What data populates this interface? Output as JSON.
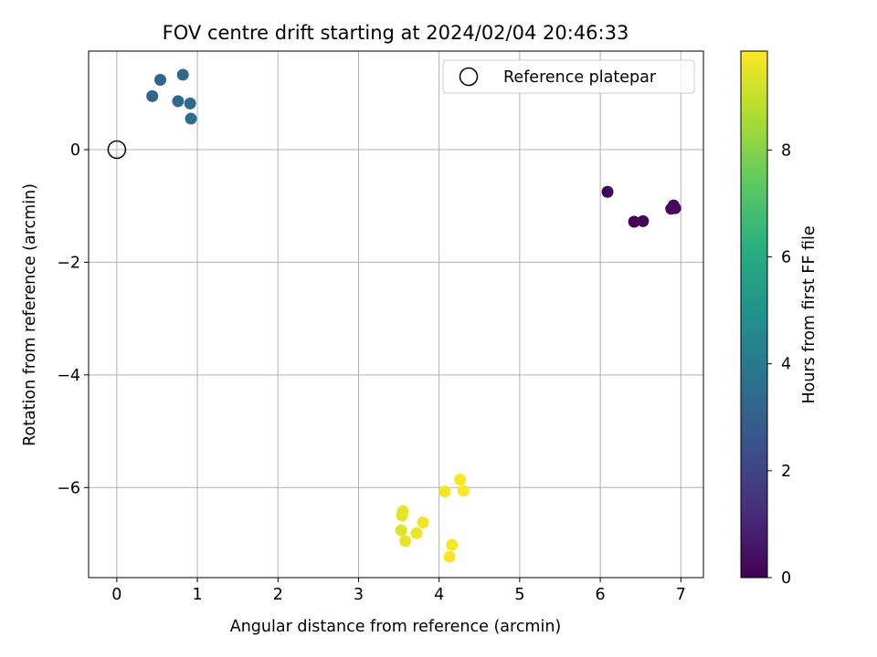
{
  "chart_data": {
    "type": "scatter",
    "title": "FOV centre drift starting at 2024/02/04 20:46:33",
    "xlabel": "Angular distance from reference (arcmin)",
    "ylabel": "Rotation from reference (arcmin)",
    "xlim": [
      -0.35,
      7.28
    ],
    "ylim": [
      -7.6,
      1.75
    ],
    "xticks": [
      0,
      1,
      2,
      3,
      4,
      5,
      6,
      7
    ],
    "yticks": [
      0,
      -2,
      -4,
      -6
    ],
    "grid": true,
    "legend": {
      "position": "top-right",
      "entries": [
        "Reference platepar"
      ]
    },
    "reference_point": {
      "x": 0,
      "y": 0,
      "label": "Reference platepar"
    },
    "colorbar": {
      "label": "Hours from first FF file",
      "range": [
        0,
        9.85
      ],
      "ticks": [
        0,
        2,
        4,
        6,
        8
      ],
      "colormap": "viridis"
    },
    "points": [
      {
        "x": 6.09,
        "y": -0.75,
        "hours": 0.0
      },
      {
        "x": 6.42,
        "y": -1.28,
        "hours": 0.05
      },
      {
        "x": 6.53,
        "y": -1.27,
        "hours": 0.1
      },
      {
        "x": 6.88,
        "y": -1.05,
        "hours": 0.15
      },
      {
        "x": 6.91,
        "y": -0.99,
        "hours": 0.2
      },
      {
        "x": 6.93,
        "y": -1.04,
        "hours": 0.25
      },
      {
        "x": 0.44,
        "y": 0.95,
        "hours": 3.2
      },
      {
        "x": 0.54,
        "y": 1.24,
        "hours": 3.25
      },
      {
        "x": 0.76,
        "y": 0.86,
        "hours": 3.3
      },
      {
        "x": 0.82,
        "y": 1.33,
        "hours": 3.35
      },
      {
        "x": 0.91,
        "y": 0.82,
        "hours": 3.4
      },
      {
        "x": 0.92,
        "y": 0.55,
        "hours": 3.45
      },
      {
        "x": 3.53,
        "y": -6.76,
        "hours": 9.4
      },
      {
        "x": 3.54,
        "y": -6.5,
        "hours": 9.45
      },
      {
        "x": 3.55,
        "y": -6.42,
        "hours": 9.5
      },
      {
        "x": 3.58,
        "y": -6.95,
        "hours": 9.55
      },
      {
        "x": 3.72,
        "y": -6.81,
        "hours": 9.6
      },
      {
        "x": 3.8,
        "y": -6.62,
        "hours": 9.65
      },
      {
        "x": 4.07,
        "y": -6.07,
        "hours": 9.7
      },
      {
        "x": 4.13,
        "y": -7.23,
        "hours": 9.73
      },
      {
        "x": 4.16,
        "y": -7.02,
        "hours": 9.76
      },
      {
        "x": 4.26,
        "y": -5.86,
        "hours": 9.79
      },
      {
        "x": 4.3,
        "y": -6.06,
        "hours": 9.82
      }
    ]
  }
}
